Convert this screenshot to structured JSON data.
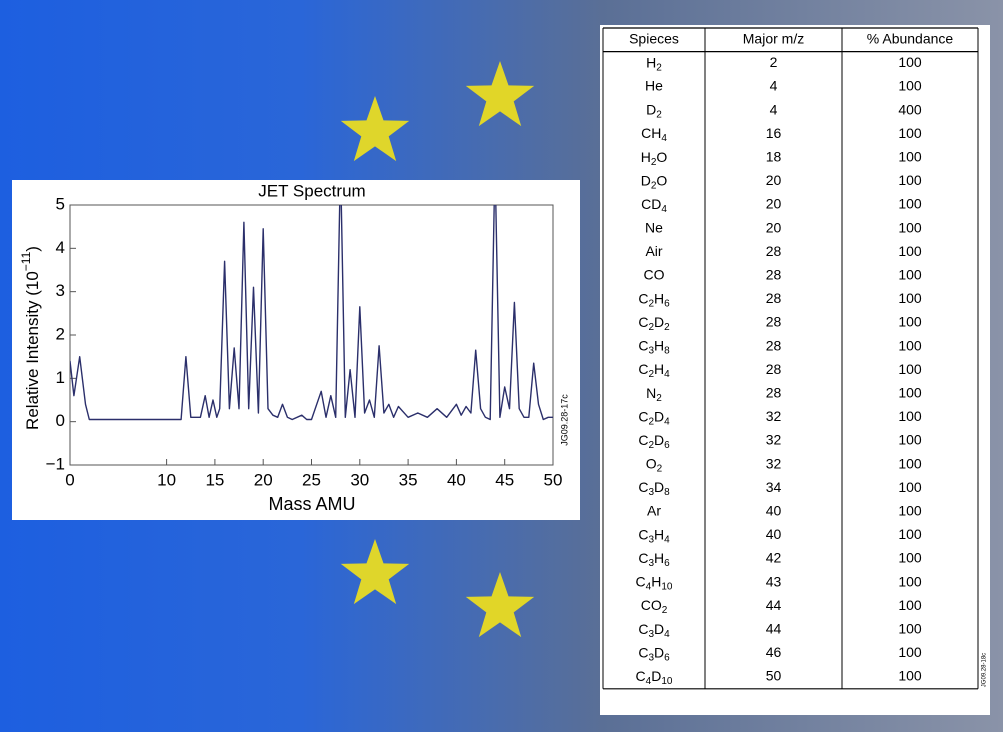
{
  "chart_data": {
    "type": "line",
    "title": "JET Spectrum",
    "xlabel": "Mass AMU",
    "ylabel": "Relative Intensity (10−11)",
    "note": "JG09.28-17c",
    "x": [
      0,
      0.4,
      1,
      1.6,
      2,
      11.5,
      12,
      12.5,
      13,
      13.5,
      14,
      14.4,
      14.8,
      15.2,
      15.5,
      16,
      16.5,
      17,
      17.5,
      18,
      18.5,
      19,
      19.5,
      20,
      20.5,
      21,
      21.5,
      22,
      22.5,
      23,
      24,
      24.5,
      25,
      26,
      26.5,
      27,
      27.5,
      28,
      28.5,
      29,
      29.5,
      30,
      30.5,
      31,
      31.5,
      32,
      32.5,
      33,
      33.5,
      34,
      35,
      36,
      37,
      38,
      39,
      40,
      40.5,
      41,
      41.5,
      42,
      42.5,
      43,
      43.5,
      44,
      44.5,
      45,
      45.5,
      46,
      46.5,
      47,
      47.5,
      48,
      48.5,
      49,
      49.5,
      50
    ],
    "series": [
      {
        "color": "#2b2f6b",
        "values": [
          1.4,
          0.6,
          1.5,
          0.4,
          0.05,
          0.05,
          1.5,
          0.1,
          0.1,
          0.1,
          0.6,
          0.1,
          0.5,
          0.1,
          0.3,
          3.7,
          0.3,
          1.7,
          0.3,
          4.6,
          0.3,
          3.1,
          0.2,
          4.45,
          0.3,
          0.15,
          0.1,
          0.4,
          0.1,
          0.05,
          0.15,
          0.05,
          0.05,
          0.7,
          0.1,
          0.6,
          0.1,
          6,
          0.1,
          1.2,
          0.1,
          2.65,
          0.2,
          0.5,
          0.1,
          1.75,
          0.2,
          0.4,
          0.1,
          0.35,
          0.1,
          0.2,
          0.1,
          0.3,
          0.1,
          0.4,
          0.15,
          0.35,
          0.2,
          1.65,
          0.3,
          0.1,
          0.05,
          6,
          0.1,
          0.8,
          0.3,
          2.75,
          0.3,
          0.1,
          0.1,
          1.35,
          0.4,
          0.05,
          0.1,
          0.1
        ]
      }
    ],
    "xlim": [
      0,
      50
    ],
    "xticks": [
      0,
      10,
      15,
      20,
      25,
      30,
      35,
      40,
      45,
      50
    ],
    "ylim": [
      -1,
      5
    ],
    "yticks": [
      {
        "value": -1,
        "label": "−1"
      },
      0,
      1,
      2,
      3,
      4,
      5
    ]
  },
  "table": {
    "header": [
      "Spieces",
      "Major m/z",
      "% Abundance"
    ],
    "note": "JG09.28-18c",
    "rows": [
      [
        "H2",
        2,
        100
      ],
      [
        "He",
        4,
        100
      ],
      [
        "D2",
        4,
        400
      ],
      [
        "CH4",
        16,
        100
      ],
      [
        "H2O",
        18,
        100
      ],
      [
        "D2O",
        20,
        100
      ],
      [
        "CD4",
        20,
        100
      ],
      [
        "Ne",
        20,
        100
      ],
      [
        "Air",
        28,
        100
      ],
      [
        "CO",
        28,
        100
      ],
      [
        "C2H6",
        28,
        100
      ],
      [
        "C2D2",
        28,
        100
      ],
      [
        "C3H8",
        28,
        100
      ],
      [
        "C2H4",
        28,
        100
      ],
      [
        "N2",
        28,
        100
      ],
      [
        "C2D4",
        32,
        100
      ],
      [
        "C2D6",
        32,
        100
      ],
      [
        "O2",
        32,
        100
      ],
      [
        "C3D8",
        34,
        100
      ],
      [
        "Ar",
        40,
        100
      ],
      [
        "C3H4",
        40,
        100
      ],
      [
        "C3H6",
        42,
        100
      ],
      [
        "C4H10",
        43,
        100
      ],
      [
        "CO2",
        44,
        100
      ],
      [
        "C3D4",
        44,
        100
      ],
      [
        "C3D6",
        46,
        100
      ],
      [
        "C4D10",
        50,
        100
      ]
    ]
  }
}
